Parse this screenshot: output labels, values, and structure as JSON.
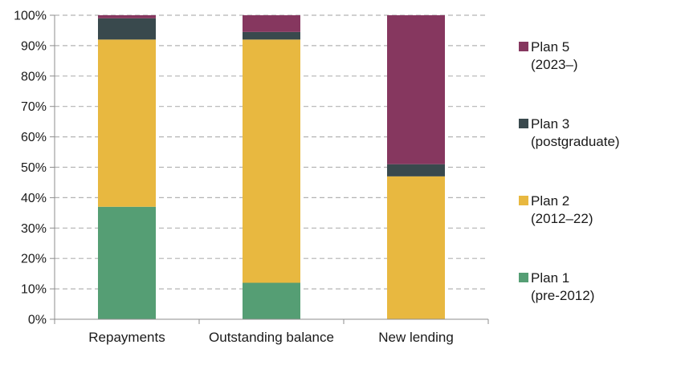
{
  "chart_data": {
    "type": "bar",
    "stacked": true,
    "categories": [
      "Repayments",
      "Outstanding balance",
      "New lending"
    ],
    "series": [
      {
        "name": "Plan 1\n(pre-2012)",
        "values": [
          37,
          12,
          0
        ],
        "color": "#559e74"
      },
      {
        "name": "Plan 2\n(2012–22)",
        "values": [
          55,
          80,
          47
        ],
        "color": "#e8b840"
      },
      {
        "name": "Plan 3\n(postgraduate)",
        "values": [
          7,
          2.5,
          4
        ],
        "color": "#39494d"
      },
      {
        "name": "Plan 5\n(2023–)",
        "values": [
          1,
          5.5,
          49
        ],
        "color": "#86375f"
      }
    ],
    "ylim": [
      0,
      100
    ],
    "yticks": [
      "0%",
      "10%",
      "20%",
      "30%",
      "40%",
      "50%",
      "60%",
      "70%",
      "80%",
      "90%",
      "100%"
    ],
    "grid": true,
    "grid_style": "dashed",
    "legend_position": "right",
    "legend_order": [
      "Plan 5\n(2023–)",
      "Plan 3\n(postgraduate)",
      "Plan 2\n(2012–22)",
      "Plan 1\n(pre-2012)"
    ]
  }
}
